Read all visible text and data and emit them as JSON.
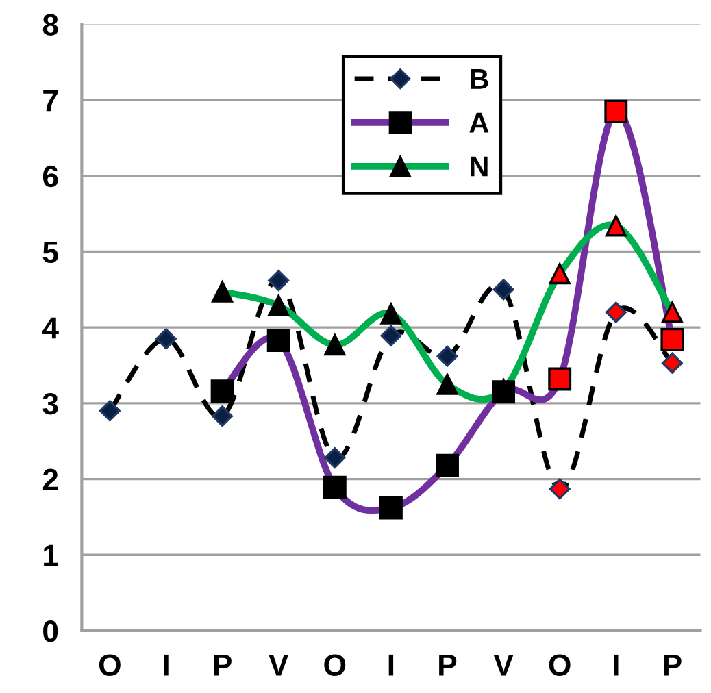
{
  "chart_data": {
    "type": "line",
    "categories": [
      "O",
      "I",
      "P",
      "V",
      "O",
      "I",
      "P",
      "V",
      "O",
      "I",
      "P"
    ],
    "series": [
      {
        "name": "B",
        "color": "#000000",
        "line_style": "dashed",
        "marker": "diamond",
        "colors": [
          "#0a1f44",
          "#0a1f44",
          "#0a1f44",
          "#0a1f44",
          "#0a1f44",
          "#0a1f44",
          "#0a1f44",
          "#0a1f44",
          "#ff0000",
          "#ff0000",
          "#ff0000"
        ],
        "values": [
          2.9,
          3.85,
          2.83,
          4.62,
          2.28,
          3.89,
          3.62,
          4.5,
          1.87,
          4.2,
          3.53
        ]
      },
      {
        "name": "A",
        "color": "#7030a0",
        "line_style": "solid",
        "marker": "square",
        "colors": [
          null,
          null,
          "#000000",
          "#000000",
          "#000000",
          "#000000",
          "#000000",
          "#000000",
          "#ff0000",
          "#ff0000",
          "#ff0000"
        ],
        "values": [
          null,
          null,
          3.16,
          3.83,
          1.89,
          1.62,
          2.18,
          3.15,
          3.32,
          6.85,
          3.84
        ]
      },
      {
        "name": "N",
        "color": "#00b050",
        "line_style": "solid",
        "marker": "triangle",
        "colors": [
          null,
          null,
          "#000000",
          "#000000",
          "#000000",
          "#000000",
          "#000000",
          "#000000",
          "#ff0000",
          "#ff0000",
          "#ff0000"
        ],
        "values": [
          null,
          null,
          4.47,
          4.29,
          3.77,
          4.18,
          3.25,
          3.18,
          4.71,
          5.34,
          4.2
        ]
      }
    ],
    "ylim": [
      0,
      8
    ],
    "yticks": [
      0,
      1,
      2,
      3,
      4,
      5,
      6,
      7,
      8
    ],
    "grid": "y",
    "legend": "top"
  }
}
